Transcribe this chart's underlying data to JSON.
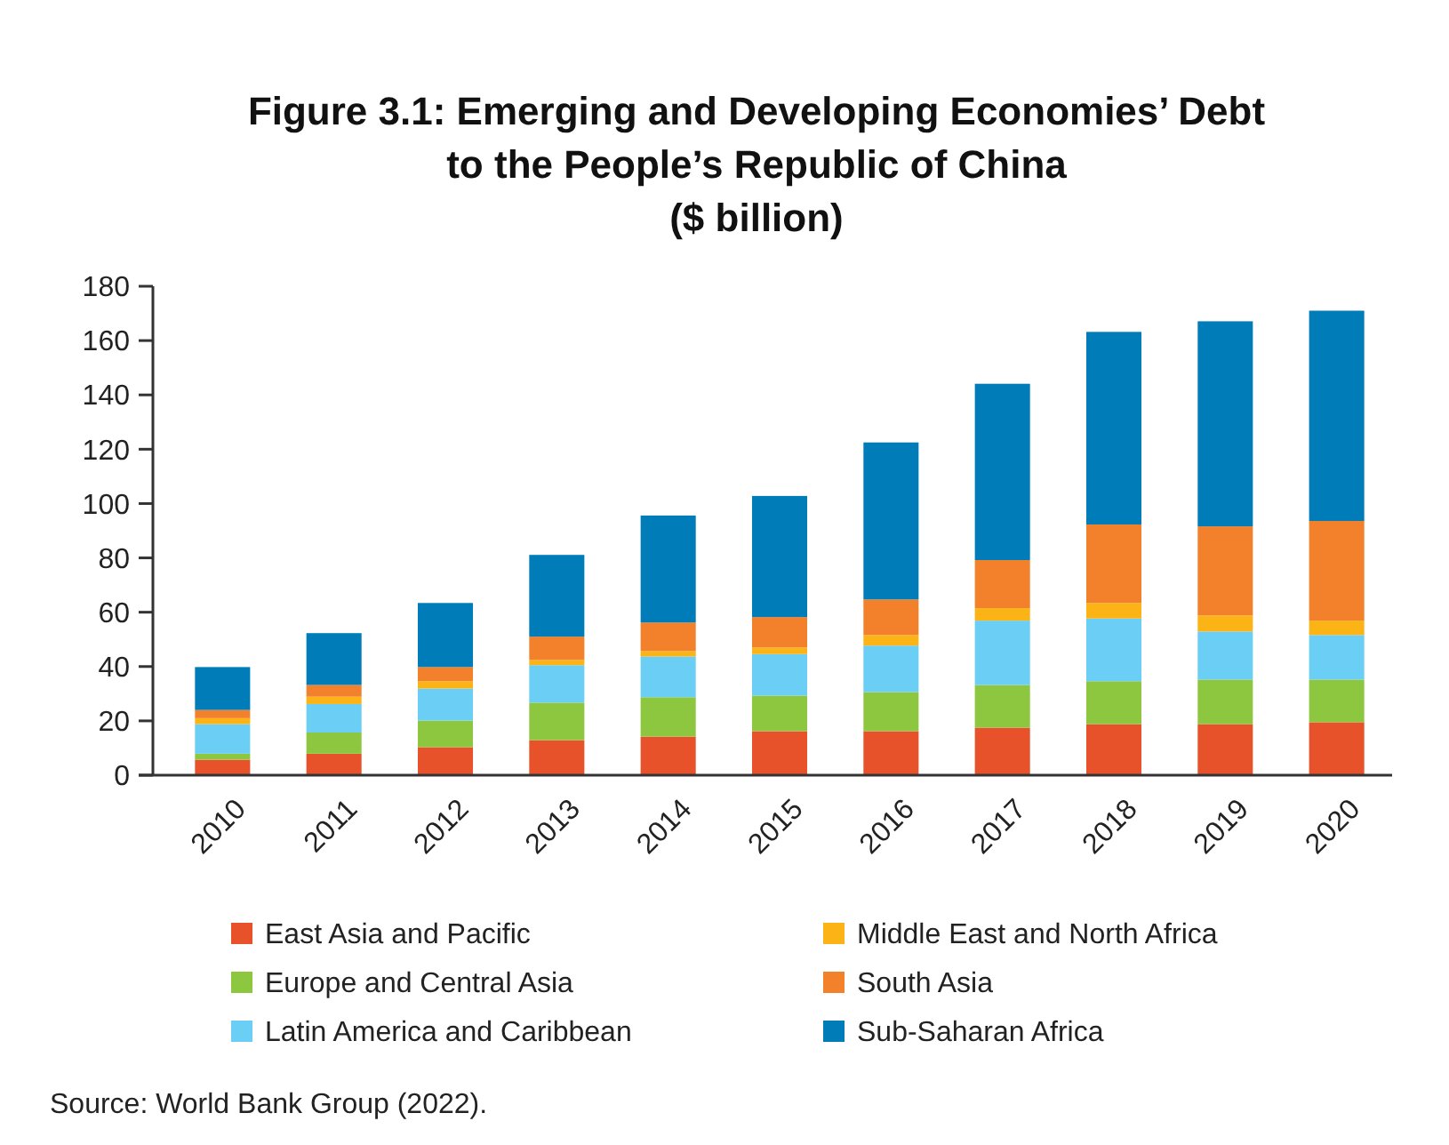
{
  "chart_data": {
    "type": "bar",
    "stacked": true,
    "title": "Figure 3.1: Emerging and Developing Economies’ Debt\nto the People’s Republic of China",
    "subtitle": "($ billion)",
    "categories": [
      "2010",
      "2011",
      "2012",
      "2013",
      "2014",
      "2015",
      "2016",
      "2017",
      "2018",
      "2019",
      "2020"
    ],
    "series": [
      {
        "name": "East Asia and Pacific",
        "color": "#e8522a",
        "values": [
          5.7,
          7.9,
          10.3,
          12.9,
          14.2,
          16.2,
          16.2,
          17.5,
          18.8,
          18.8,
          19.5
        ]
      },
      {
        "name": "Europe and Central Asia",
        "color": "#8dc63f",
        "values": [
          2.2,
          7.8,
          9.8,
          13.8,
          14.5,
          13.1,
          14.4,
          15.7,
          15.8,
          16.4,
          15.7
        ]
      },
      {
        "name": "Latin America and Caribbean",
        "color": "#6acef5",
        "values": [
          10.9,
          10.5,
          11.8,
          13.8,
          15,
          15.3,
          17.1,
          23.7,
          23.1,
          17.7,
          16.4
        ]
      },
      {
        "name": "Middle East and North Africa",
        "color": "#fbb316",
        "values": [
          2.2,
          2.7,
          2.7,
          1.9,
          2,
          2.4,
          3.9,
          4.6,
          5.7,
          5.9,
          5.3
        ]
      },
      {
        "name": "South Asia",
        "color": "#f3802b",
        "values": [
          3,
          4.3,
          5.2,
          8.6,
          10.5,
          11.2,
          13.1,
          17.7,
          28.9,
          32.8,
          36.7
        ]
      },
      {
        "name": "Sub-Saharan Africa",
        "color": "#007db8",
        "values": [
          15.8,
          19.1,
          23.6,
          30.1,
          39.4,
          44.6,
          57.8,
          64.9,
          70.9,
          75.5,
          77.4
        ]
      }
    ],
    "ylim": [
      0,
      180
    ],
    "yticks": [
      0,
      20,
      40,
      60,
      80,
      100,
      120,
      140,
      160,
      180
    ],
    "grid": false,
    "legend": "bottom",
    "annotations": [
      "Source: World Bank Group (2022)."
    ]
  }
}
